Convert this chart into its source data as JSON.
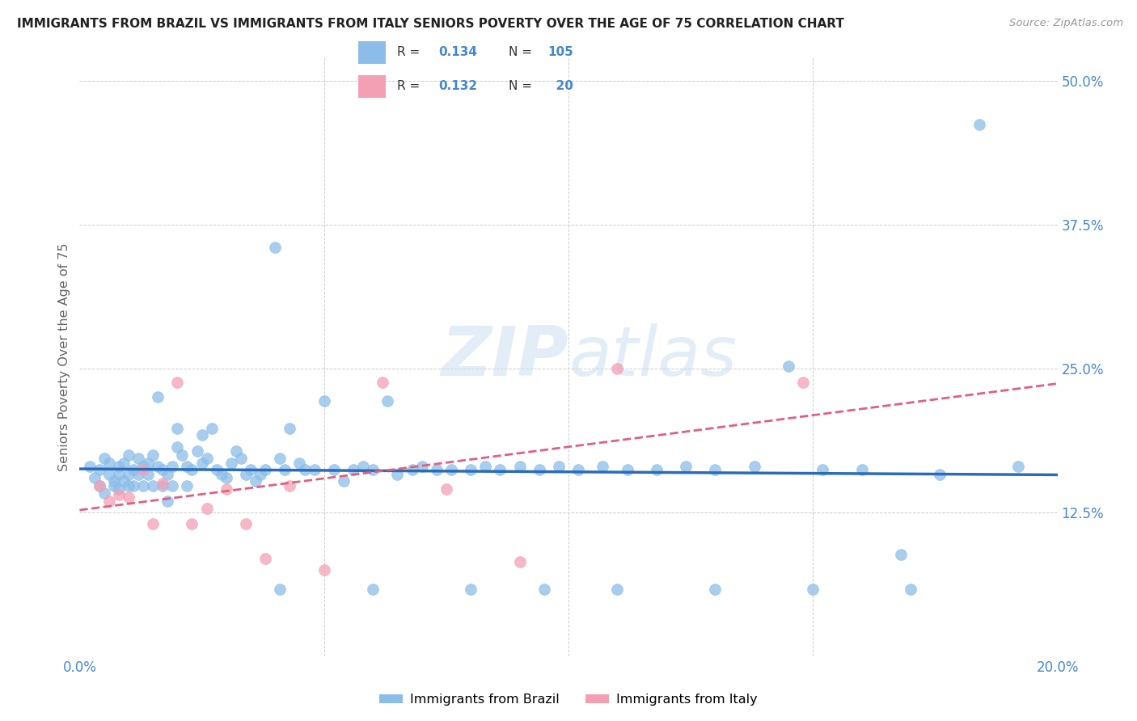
{
  "title": "IMMIGRANTS FROM BRAZIL VS IMMIGRANTS FROM ITALY SENIORS POVERTY OVER THE AGE OF 75 CORRELATION CHART",
  "source": "Source: ZipAtlas.com",
  "ylabel": "Seniors Poverty Over the Age of 75",
  "xlim": [
    0.0,
    0.2
  ],
  "ylim": [
    0.0,
    0.52
  ],
  "ytick_positions": [
    0.125,
    0.25,
    0.375,
    0.5
  ],
  "ytick_labels": [
    "12.5%",
    "25.0%",
    "37.5%",
    "50.0%"
  ],
  "brazil_color": "#8BBDE8",
  "brazil_color_line": "#2A6CB8",
  "italy_color": "#F4A0B4",
  "italy_color_line": "#E06080",
  "brazil_R": 0.134,
  "brazil_N": 105,
  "italy_R": 0.132,
  "italy_N": 20,
  "background_color": "#FFFFFF",
  "grid_color": "#CCCCCC",
  "tick_color": "#4488CC",
  "title_color": "#222222",
  "source_color": "#999999",
  "ylabel_color": "#666666",
  "watermark_color": "#C8DCF0",
  "watermark_alpha": 0.5,
  "brazil_scatter_x": [
    0.002,
    0.003,
    0.004,
    0.004,
    0.005,
    0.005,
    0.006,
    0.006,
    0.007,
    0.007,
    0.008,
    0.008,
    0.008,
    0.009,
    0.009,
    0.01,
    0.01,
    0.01,
    0.011,
    0.011,
    0.012,
    0.012,
    0.013,
    0.013,
    0.014,
    0.014,
    0.015,
    0.015,
    0.016,
    0.016,
    0.017,
    0.017,
    0.018,
    0.018,
    0.019,
    0.019,
    0.02,
    0.02,
    0.021,
    0.022,
    0.022,
    0.023,
    0.024,
    0.025,
    0.025,
    0.026,
    0.027,
    0.028,
    0.029,
    0.03,
    0.031,
    0.032,
    0.033,
    0.034,
    0.035,
    0.036,
    0.037,
    0.038,
    0.04,
    0.041,
    0.042,
    0.043,
    0.045,
    0.046,
    0.048,
    0.05,
    0.052,
    0.054,
    0.056,
    0.058,
    0.06,
    0.063,
    0.065,
    0.068,
    0.07,
    0.073,
    0.076,
    0.08,
    0.083,
    0.086,
    0.09,
    0.094,
    0.098,
    0.102,
    0.107,
    0.112,
    0.118,
    0.124,
    0.13,
    0.138,
    0.145,
    0.152,
    0.16,
    0.168,
    0.176,
    0.184,
    0.192,
    0.041,
    0.06,
    0.08,
    0.095,
    0.11,
    0.13,
    0.15,
    0.17
  ],
  "brazil_scatter_y": [
    0.165,
    0.155,
    0.162,
    0.148,
    0.172,
    0.142,
    0.158,
    0.168,
    0.152,
    0.148,
    0.165,
    0.145,
    0.158,
    0.168,
    0.152,
    0.175,
    0.148,
    0.158,
    0.162,
    0.148,
    0.158,
    0.172,
    0.165,
    0.148,
    0.168,
    0.158,
    0.175,
    0.148,
    0.165,
    0.225,
    0.162,
    0.148,
    0.158,
    0.135,
    0.165,
    0.148,
    0.182,
    0.198,
    0.175,
    0.148,
    0.165,
    0.162,
    0.178,
    0.168,
    0.192,
    0.172,
    0.198,
    0.162,
    0.158,
    0.155,
    0.168,
    0.178,
    0.172,
    0.158,
    0.162,
    0.152,
    0.158,
    0.162,
    0.355,
    0.172,
    0.162,
    0.198,
    0.168,
    0.162,
    0.162,
    0.222,
    0.162,
    0.152,
    0.162,
    0.165,
    0.162,
    0.222,
    0.158,
    0.162,
    0.165,
    0.162,
    0.162,
    0.162,
    0.165,
    0.162,
    0.165,
    0.162,
    0.165,
    0.162,
    0.165,
    0.162,
    0.162,
    0.165,
    0.162,
    0.165,
    0.252,
    0.162,
    0.162,
    0.088,
    0.158,
    0.462,
    0.165,
    0.058,
    0.058,
    0.058,
    0.058,
    0.058,
    0.058,
    0.058,
    0.058
  ],
  "italy_scatter_x": [
    0.004,
    0.006,
    0.008,
    0.01,
    0.013,
    0.015,
    0.017,
    0.02,
    0.023,
    0.026,
    0.03,
    0.034,
    0.038,
    0.043,
    0.05,
    0.062,
    0.075,
    0.09,
    0.11,
    0.148
  ],
  "italy_scatter_y": [
    0.148,
    0.135,
    0.14,
    0.138,
    0.162,
    0.115,
    0.15,
    0.238,
    0.115,
    0.128,
    0.145,
    0.115,
    0.085,
    0.148,
    0.075,
    0.238,
    0.145,
    0.082,
    0.25,
    0.238
  ]
}
